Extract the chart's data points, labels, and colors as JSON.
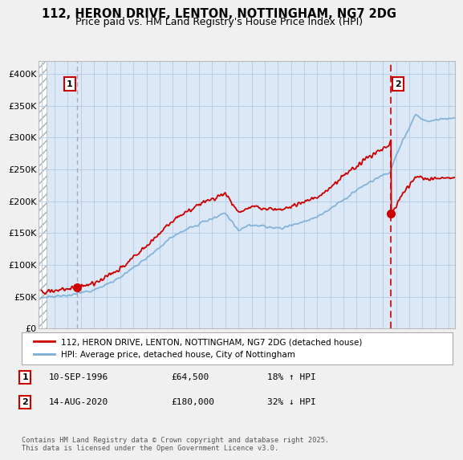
{
  "title": "112, HERON DRIVE, LENTON, NOTTINGHAM, NG7 2DG",
  "subtitle": "Price paid vs. HM Land Registry's House Price Index (HPI)",
  "legend_property": "112, HERON DRIVE, LENTON, NOTTINGHAM, NG7 2DG (detached house)",
  "legend_hpi": "HPI: Average price, detached house, City of Nottingham",
  "label1_date": "10-SEP-1996",
  "label1_price": "£64,500",
  "label1_hpi": "18% ↑ HPI",
  "label2_date": "14-AUG-2020",
  "label2_price": "£180,000",
  "label2_hpi": "32% ↓ HPI",
  "footer": "Contains HM Land Registry data © Crown copyright and database right 2025.\nThis data is licensed under the Open Government Licence v3.0.",
  "property_color": "#cc0000",
  "hpi_color": "#7aaed6",
  "plot_bg_color": "#dce8f5",
  "background_color": "#f0f0f0",
  "grid_color": "#b8cfe8",
  "transaction1_x": 1996.69,
  "transaction1_y": 64500,
  "transaction2_x": 2020.62,
  "transaction2_y": 180000,
  "ylim": [
    0,
    420000
  ],
  "xlim_start": 1993.8,
  "xlim_end": 2025.5,
  "hatch_end": 1994.42
}
